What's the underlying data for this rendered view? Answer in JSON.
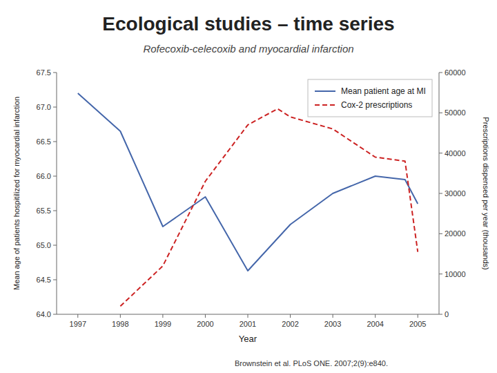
{
  "chart_data": {
    "type": "line",
    "title": "Ecological studies – time series",
    "subtitle": "Rofecoxib-celecoxib and myocardial infarction",
    "x_label": "Year",
    "y_label": "Mean age of patients hospitilized for myocardial infarction",
    "y2_label": "Prescriptions dispensed per year (thousands)",
    "series": [
      {
        "name": "Mean patient age at MI",
        "color": "#4466AA",
        "line_style": "solid",
        "x": [
          1997,
          1998,
          1999,
          2000,
          2001,
          2002,
          2003,
          2004,
          2004.7,
          2005
        ],
        "values": [
          67.2,
          66.65,
          65.27,
          65.7,
          64.63,
          65.3,
          65.75,
          66.0,
          65.95,
          65.6
        ]
      },
      {
        "name": "Cox-2 prescriptions",
        "color": "#CC2222",
        "line_style": "dashed",
        "axis": "y2",
        "x": [
          1998,
          1999,
          2000,
          2001,
          2001.7,
          2002,
          2003,
          2004,
          2004.7,
          2005
        ],
        "values": [
          2000,
          12000,
          33000,
          47000,
          51000,
          49000,
          46000,
          39000,
          38000,
          15500
        ]
      }
    ],
    "xlim": [
      1996.5,
      2005.5
    ],
    "xticks": [
      1997,
      1998,
      1999,
      2000,
      2001,
      2002,
      2003,
      2004,
      2005
    ],
    "ylim": [
      64.0,
      67.5
    ],
    "yticks": [
      {
        "value": 64.0,
        "label": "64.0"
      },
      64.5,
      {
        "value": 65.0,
        "label": "65.0"
      },
      65.5,
      {
        "value": 66.0,
        "label": "66.0"
      },
      66.5,
      {
        "value": 67.0,
        "label": "67.0"
      },
      67.5
    ],
    "y2lim": [
      0,
      60000
    ],
    "y2ticks": [
      0,
      10000,
      20000,
      30000,
      40000,
      50000,
      60000
    ],
    "grid": false,
    "legend": "upper right",
    "footnote": [
      "Brownstein et al. ",
      "PLoS ONE.",
      " 2007;2(9):e840."
    ]
  }
}
